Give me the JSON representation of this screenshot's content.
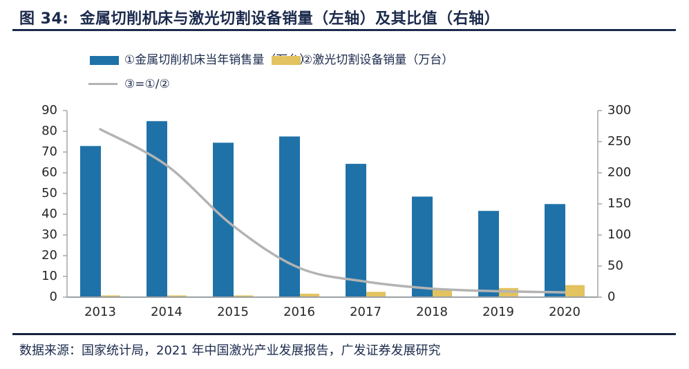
{
  "figure": {
    "label": "图 34:",
    "title": "金属切削机床与激光切割设备销量（左轴）及其比值（右轴）"
  },
  "source_note": "数据来源：国家统计局，2021 年中国激光产业发展报告，广发证券发展研究",
  "colors": {
    "accent_navy": "#1b2a4c",
    "bar_machine_tools": "#1f72a8",
    "bar_laser": "#e3c35f",
    "ratio_line": "#b3b3b3",
    "axis_line": "#a6a6a6",
    "tick_text": "#262626"
  },
  "chart_data": {
    "type": "bar",
    "subtype": "dual-axis bar + line",
    "title": "金属切削机床与激光切割设备销量（左轴）及其比值（右轴）",
    "categories": [
      "2013",
      "2014",
      "2015",
      "2016",
      "2017",
      "2018",
      "2019",
      "2020"
    ],
    "series": [
      {
        "name": "①金属切削机床当年销售量（万台）",
        "type": "bar",
        "axis": "left",
        "color": "#1f72a8",
        "values": [
          72.9,
          84.9,
          74.5,
          77.5,
          64.3,
          48.5,
          41.6,
          44.9
        ]
      },
      {
        "name": "②激光切割设备销量（万台）",
        "type": "bar",
        "axis": "left",
        "color": "#e3c35f",
        "values": [
          0.27,
          0.4,
          0.65,
          1.64,
          2.55,
          3.55,
          4.4,
          5.8
        ]
      },
      {
        "name": "③=①/②",
        "type": "line",
        "axis": "right",
        "color": "#b3b3b3",
        "values": [
          270,
          212,
          115,
          47,
          25,
          13.7,
          9.5,
          7.7
        ]
      }
    ],
    "left_axis": {
      "min": 0,
      "max": 90,
      "step": 10,
      "ticks": [
        0,
        10,
        20,
        30,
        40,
        50,
        60,
        70,
        80,
        90
      ]
    },
    "right_axis": {
      "min": 0,
      "max": 300,
      "step": 50,
      "ticks": [
        0,
        50,
        100,
        150,
        200,
        250,
        300
      ]
    },
    "grid": false,
    "legend_position": "top-left"
  }
}
